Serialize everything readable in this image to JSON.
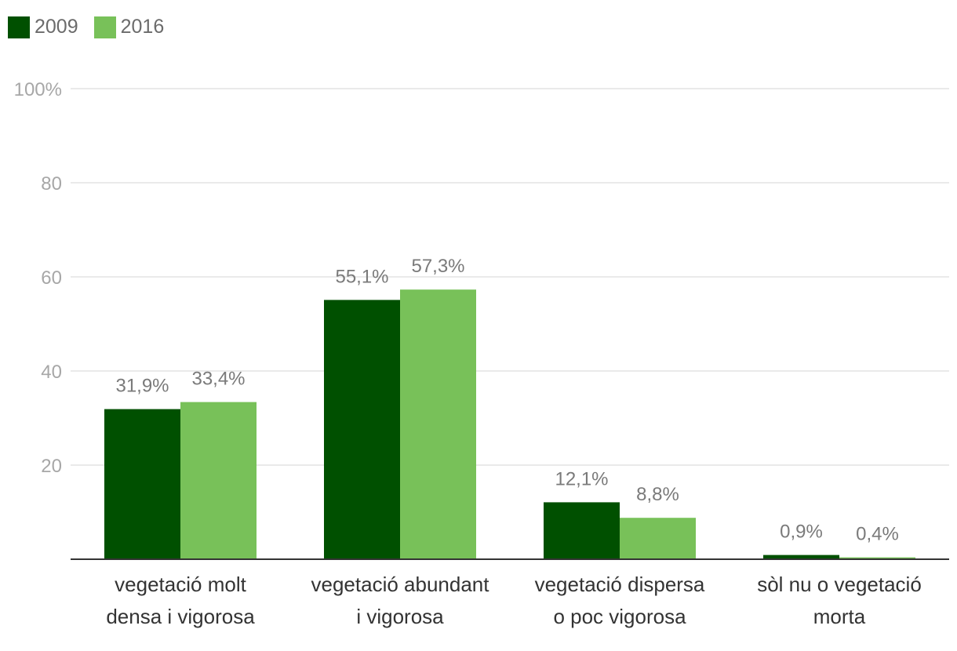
{
  "chart_data": {
    "type": "bar",
    "categories": [
      [
        "vegetació molt",
        "densa i vigorosa"
      ],
      [
        "vegetació abundant",
        "i vigorosa"
      ],
      [
        "vegetació dispersa",
        "o poc vigorosa"
      ],
      [
        "sòl nu o vegetació",
        "morta"
      ]
    ],
    "series": [
      {
        "name": "2009",
        "color": "#005000",
        "values": [
          31.9,
          55.1,
          12.1,
          0.9
        ],
        "labels": [
          "31,9%",
          "55,1%",
          "12,1%",
          "0,9%"
        ]
      },
      {
        "name": "2016",
        "color": "#78c159",
        "values": [
          33.4,
          57.3,
          8.8,
          0.4
        ],
        "labels": [
          "33,4%",
          "57,3%",
          "8,8%",
          "0,4%"
        ]
      }
    ],
    "ylim": [
      0,
      100
    ],
    "yticks": [
      {
        "value": 20,
        "label": "20"
      },
      {
        "value": 40,
        "label": "40"
      },
      {
        "value": 60,
        "label": "60"
      },
      {
        "value": 80,
        "label": "80"
      },
      {
        "value": 100,
        "label": "100%"
      }
    ],
    "grid": true,
    "legend_position": "top-left",
    "title": "",
    "xlabel": "",
    "ylabel": ""
  },
  "legend": {
    "items": [
      {
        "label": "2009",
        "color": "#005000"
      },
      {
        "label": "2016",
        "color": "#78c159"
      }
    ]
  }
}
